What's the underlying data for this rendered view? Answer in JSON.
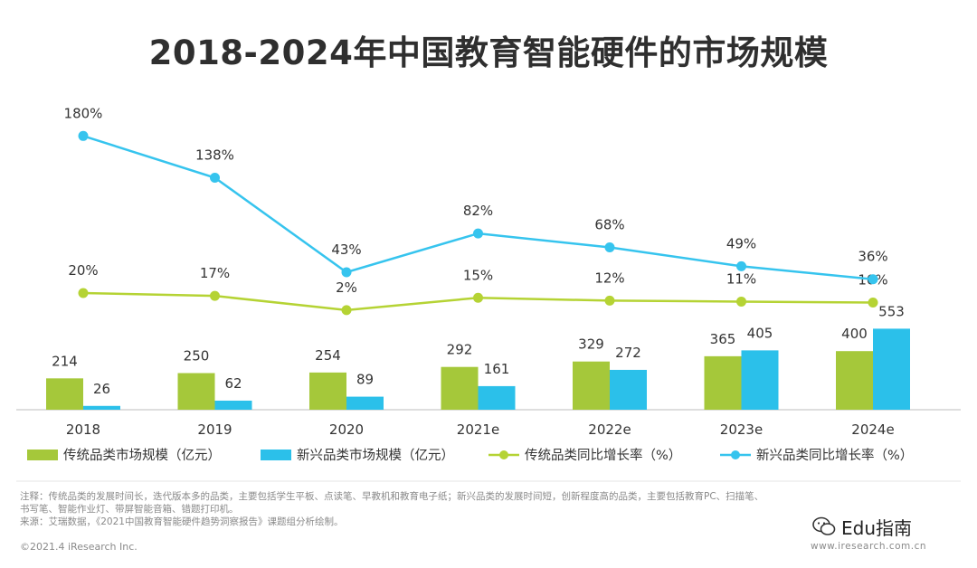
{
  "title": "2018-2024年中国教育智能硬件的市场规模",
  "notes": [
    "注释：传统品类的发展时间长，迭代版本多的品类，主要包括学生平板、点读笔、早教机和教育电子纸；新兴品类的发展时间短，创新程度高的品类，主要包括教育PC、扫描笔、",
    "书写笔、智能作业灯、带屏智能音箱、错题打印机。",
    "来源：艾瑞数据，《2021中国教育智能硬件趋势洞察报告》课题组分析绘制。"
  ],
  "copyright": "©2021.4 iResearch Inc.",
  "site": "www.iresearch.com.cn",
  "watermark": "Edu指南",
  "colors": {
    "traditional": "#a5c83a",
    "emerging": "#2bc0ea",
    "traditional_line": "#b5d334",
    "emerging_line": "#36c4ee"
  },
  "chart_data": {
    "type": "bar",
    "categories": [
      "2018",
      "2019",
      "2020",
      "2021e",
      "2022e",
      "2023e",
      "2024e"
    ],
    "series": [
      {
        "name": "传统品类市场规模（亿元）",
        "type": "bar",
        "values": [
          214,
          250,
          254,
          292,
          329,
          365,
          400
        ],
        "labels": [
          "214",
          "250",
          "254",
          "292",
          "329",
          "365",
          "400"
        ]
      },
      {
        "name": "新兴品类市场规模（亿元）",
        "type": "bar",
        "values": [
          26,
          62,
          89,
          161,
          272,
          405,
          553
        ],
        "labels": [
          "26",
          "62",
          "89",
          "161",
          "272",
          "405",
          "553"
        ]
      },
      {
        "name": "传统品类同比增长率（%）",
        "type": "line",
        "values": [
          20,
          17,
          2,
          15,
          12,
          11,
          10
        ],
        "labels": [
          "20%",
          "17%",
          "2%",
          "15%",
          "12%",
          "11%",
          "10%"
        ]
      },
      {
        "name": "新兴品类同比增长率（%）",
        "type": "line",
        "values": [
          180,
          138,
          43,
          82,
          68,
          49,
          36
        ],
        "labels": [
          "180%",
          "138%",
          "43%",
          "82%",
          "68%",
          "49%",
          "36%"
        ]
      }
    ],
    "legend_position": "bottom",
    "grid": false
  }
}
